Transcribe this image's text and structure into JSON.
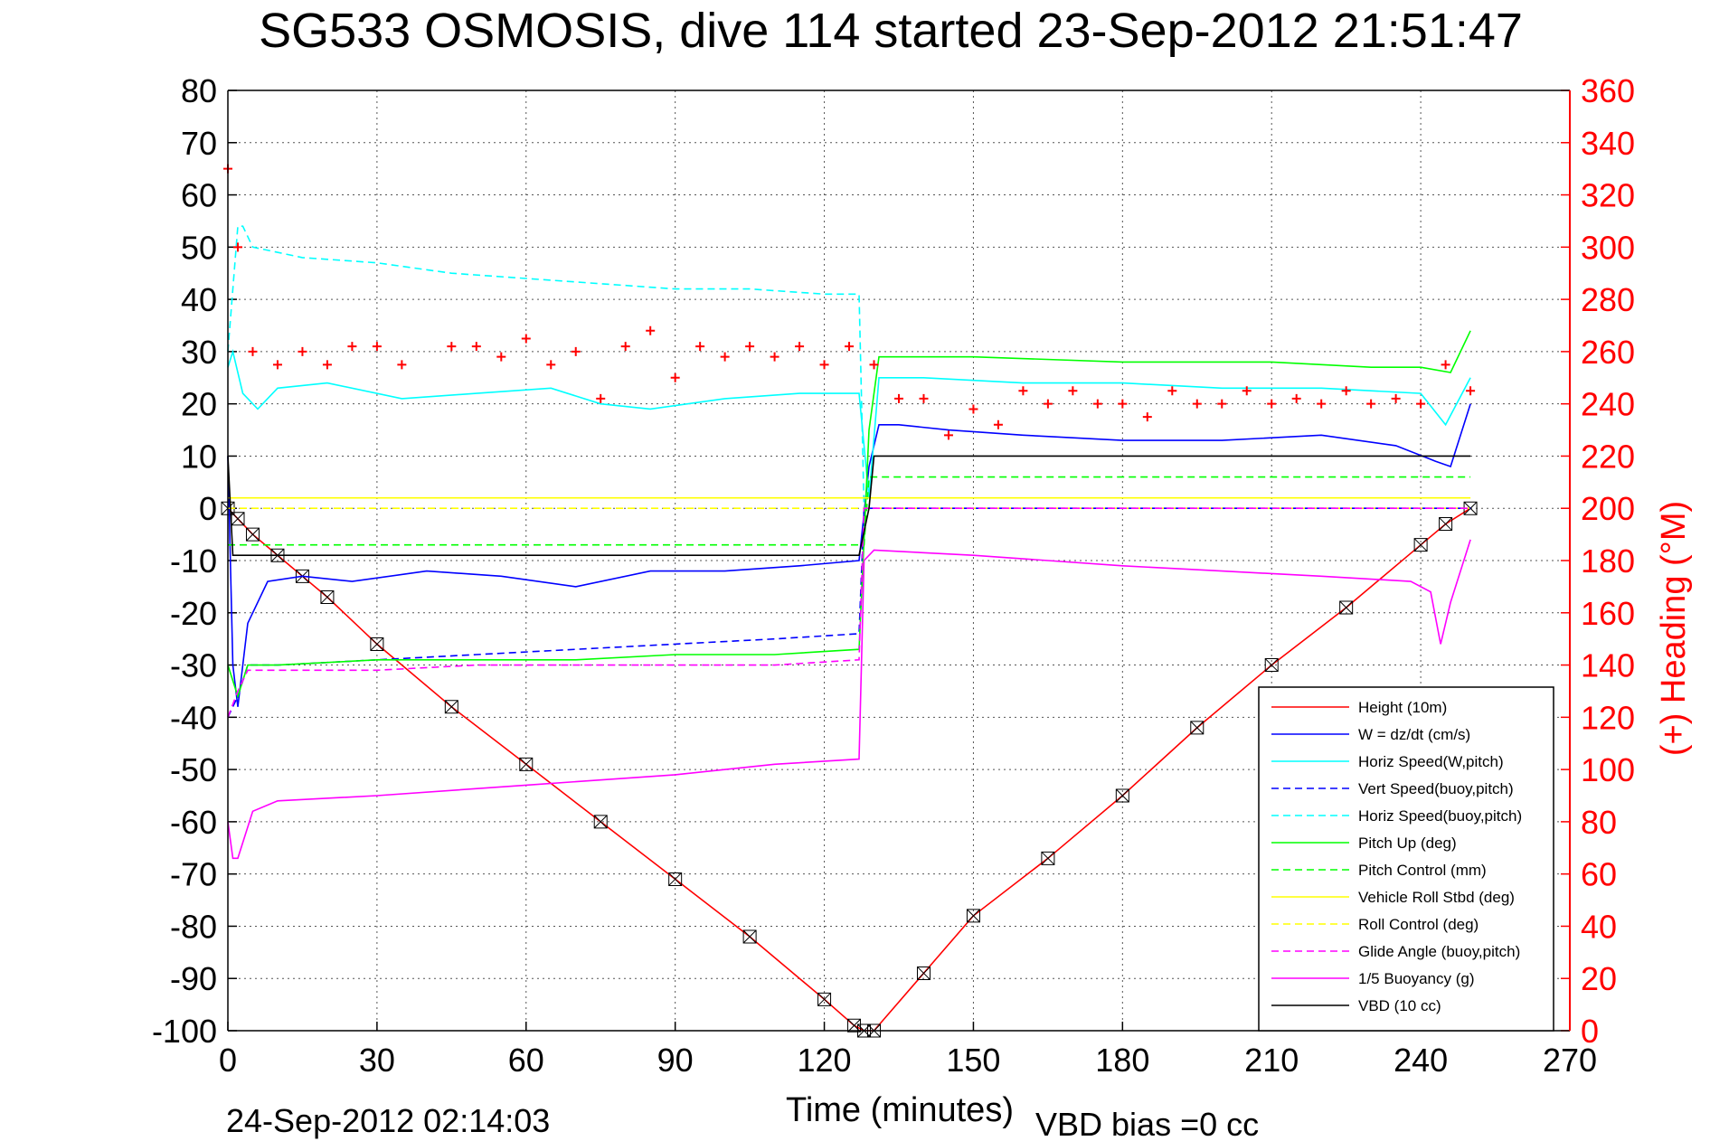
{
  "chart_data": {
    "type": "line",
    "title": "SG533 OSMOSIS, dive 114 started 23-Sep-2012 21:51:47",
    "xlabel": "Time (minutes)",
    "ylabel_right": "(+) Heading (°M)",
    "footer_left": "24-Sep-2012 02:14:03",
    "footer_right": "VBD bias =0 cc",
    "xlim": [
      0,
      270
    ],
    "ylim": [
      -100,
      80
    ],
    "ylim_right": [
      0,
      360
    ],
    "xticks": [
      "0",
      "30",
      "60",
      "90",
      "120",
      "150",
      "180",
      "210",
      "240",
      "270"
    ],
    "yticks": [
      "80",
      "70",
      "60",
      "50",
      "40",
      "30",
      "20",
      "10",
      "0",
      "-10",
      "-20",
      "-30",
      "-40",
      "-50",
      "-60",
      "-70",
      "-80",
      "-90",
      "-100"
    ],
    "yticks_right": [
      "360",
      "340",
      "320",
      "300",
      "280",
      "260",
      "240",
      "220",
      "200",
      "180",
      "160",
      "140",
      "120",
      "100",
      "80",
      "60",
      "40",
      "20",
      "0"
    ],
    "grid": true,
    "legend_position": "bottom-right",
    "colors": {
      "height": "#ff0000",
      "w": "#0000ff",
      "horiz": "#00ffff",
      "pitch": "#00ff00",
      "roll": "#ffff00",
      "glide": "#ff00ff",
      "buoyancy": "#ff00ff",
      "vbd": "#000000",
      "heading": "#ff0000",
      "right_axis": "#ff0000"
    },
    "legend": [
      {
        "label": "Height (10m)",
        "color": "#ff0000",
        "dash": false
      },
      {
        "label": "W = dz/dt (cm/s)",
        "color": "#0000ff",
        "dash": false
      },
      {
        "label": "Horiz Speed(W,pitch)",
        "color": "#00ffff",
        "dash": false
      },
      {
        "label": "Vert Speed(buoy,pitch)",
        "color": "#0000ff",
        "dash": true
      },
      {
        "label": "Horiz Speed(buoy,pitch)",
        "color": "#00ffff",
        "dash": true
      },
      {
        "label": "Pitch Up (deg)",
        "color": "#00ff00",
        "dash": false
      },
      {
        "label": "Pitch Control (mm)",
        "color": "#00ff00",
        "dash": true
      },
      {
        "label": "Vehicle Roll Stbd (deg)",
        "color": "#ffff00",
        "dash": false
      },
      {
        "label": "Roll Control (deg)",
        "color": "#ffff00",
        "dash": true
      },
      {
        "label": "Glide Angle (buoy,pitch)",
        "color": "#ff00ff",
        "dash": true
      },
      {
        "label": "1/5 Buoyancy (g)",
        "color": "#ff00ff",
        "dash": false
      },
      {
        "label": "VBD (10 cc)",
        "color": "#000000",
        "dash": false
      }
    ],
    "series": [
      {
        "name": "Height (10m)",
        "x": [
          0,
          2,
          5,
          10,
          15,
          20,
          30,
          45,
          60,
          75,
          90,
          105,
          120,
          126,
          128,
          130,
          140,
          150,
          165,
          180,
          195,
          210,
          225,
          240,
          245,
          250
        ],
        "y": [
          0,
          -2,
          -5,
          -9,
          -13,
          -17,
          -26,
          -38,
          -49,
          -60,
          -71,
          -82,
          -94,
          -99,
          -100,
          -100,
          -89,
          -78,
          -67,
          -55,
          -42,
          -30,
          -19,
          -7,
          -3,
          0
        ]
      },
      {
        "name": "W = dz/dt (cm/s)",
        "x": [
          0,
          1,
          2,
          4,
          8,
          15,
          25,
          40,
          55,
          70,
          85,
          100,
          115,
          127,
          129,
          131,
          135,
          145,
          160,
          180,
          200,
          220,
          235,
          243,
          246,
          250
        ],
        "y": [
          10,
          -30,
          -38,
          -22,
          -14,
          -13,
          -14,
          -12,
          -13,
          -15,
          -12,
          -12,
          -11,
          -10,
          8,
          16,
          16,
          15,
          14,
          13,
          13,
          14,
          12,
          9,
          8,
          20
        ]
      },
      {
        "name": "Horiz Speed(W,pitch)",
        "x": [
          0,
          1,
          3,
          6,
          10,
          20,
          35,
          50,
          65,
          75,
          85,
          100,
          115,
          127,
          129,
          131,
          140,
          160,
          180,
          200,
          220,
          240,
          245,
          250
        ],
        "y": [
          27,
          30,
          22,
          19,
          23,
          24,
          21,
          22,
          23,
          20,
          19,
          21,
          22,
          22,
          2,
          25,
          25,
          24,
          24,
          23,
          23,
          22,
          16,
          25
        ]
      },
      {
        "name": "Vert Speed(buoy,pitch)",
        "x": [
          0,
          2,
          4,
          10,
          30,
          50,
          70,
          90,
          110,
          127,
          128,
          250
        ],
        "y": [
          -40,
          -36,
          -30,
          -30,
          -29,
          -28,
          -27,
          -26,
          -25,
          -24,
          0,
          0
        ]
      },
      {
        "name": "Horiz Speed(buoy,pitch)",
        "x": [
          0,
          2,
          3,
          5,
          15,
          30,
          45,
          60,
          75,
          90,
          105,
          120,
          127,
          128
        ],
        "y": [
          30,
          54,
          54,
          50,
          48,
          47,
          45,
          44,
          43,
          42,
          42,
          41,
          41,
          0
        ]
      },
      {
        "name": "Pitch Up (deg)",
        "x": [
          0,
          2,
          4,
          10,
          30,
          50,
          70,
          90,
          110,
          127,
          129,
          131,
          150,
          180,
          210,
          230,
          240,
          246,
          250
        ],
        "y": [
          -30,
          -36,
          -30,
          -30,
          -29,
          -29,
          -29,
          -28,
          -28,
          -27,
          15,
          29,
          29,
          28,
          28,
          27,
          27,
          26,
          34
        ]
      },
      {
        "name": "Pitch Control (mm)",
        "x": [
          0,
          128,
          129,
          250
        ],
        "y": [
          -7,
          -7,
          6,
          6
        ]
      },
      {
        "name": "Vehicle Roll Stbd (deg)",
        "x": [
          0,
          250
        ],
        "y": [
          2,
          2
        ]
      },
      {
        "name": "Roll Control (deg)",
        "x": [
          0,
          250
        ],
        "y": [
          0,
          0
        ]
      },
      {
        "name": "Glide Angle (buoy,pitch)",
        "x": [
          0,
          2,
          4,
          10,
          30,
          50,
          70,
          90,
          110,
          127,
          128,
          250
        ],
        "y": [
          -40,
          -35,
          -31,
          -31,
          -31,
          -30,
          -30,
          -30,
          -30,
          -29,
          0,
          0
        ]
      },
      {
        "name": "1/5 Buoyancy (g)",
        "x": [
          0,
          1,
          2,
          5,
          10,
          30,
          60,
          90,
          110,
          127,
          128,
          130,
          150,
          180,
          200,
          220,
          238,
          242,
          244,
          246,
          250
        ],
        "y": [
          -60,
          -67,
          -67,
          -58,
          -56,
          -55,
          -53,
          -51,
          -49,
          -48,
          -10,
          -8,
          -9,
          -11,
          -12,
          -13,
          -14,
          -16,
          -26,
          -18,
          -6
        ]
      },
      {
        "name": "VBD (10 cc)",
        "x": [
          0,
          1,
          127,
          129,
          130,
          250
        ],
        "y": [
          10,
          -9,
          -9,
          0,
          10,
          10
        ]
      },
      {
        "name": "(+) Heading (°M)",
        "x": [
          0,
          2,
          5,
          10,
          15,
          20,
          25,
          30,
          35,
          45,
          50,
          55,
          60,
          65,
          70,
          75,
          80,
          85,
          90,
          95,
          100,
          105,
          110,
          115,
          120,
          125,
          130,
          135,
          140,
          145,
          150,
          155,
          160,
          165,
          170,
          175,
          180,
          185,
          190,
          195,
          200,
          205,
          210,
          215,
          220,
          225,
          230,
          235,
          240,
          245,
          250
        ],
        "y": [
          330,
          300,
          260,
          255,
          260,
          255,
          262,
          262,
          255,
          262,
          262,
          258,
          265,
          255,
          260,
          242,
          262,
          268,
          250,
          262,
          258,
          262,
          258,
          262,
          255,
          262,
          255,
          242,
          242,
          228,
          238,
          232,
          245,
          240,
          245,
          240,
          240,
          235,
          245,
          240,
          240,
          245,
          240,
          242,
          240,
          245,
          240,
          242,
          240,
          255,
          245
        ]
      }
    ]
  }
}
